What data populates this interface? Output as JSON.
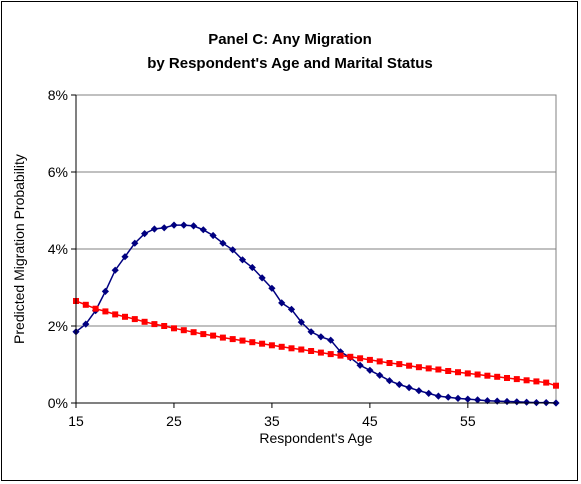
{
  "chart_data": {
    "type": "line",
    "title": "Panel C: Any Migration",
    "subtitle": "by Respondent's Age and Marital Status",
    "xlabel": "Respondent's Age",
    "ylabel": "Predicted Migration Probability",
    "xlim": [
      15,
      64
    ],
    "ylim": [
      0,
      0.08
    ],
    "x_ticks": [
      15,
      25,
      35,
      45,
      55
    ],
    "y_ticks": [
      {
        "value": 0,
        "label": "0%"
      },
      {
        "value": 0.02,
        "label": "2%"
      },
      {
        "value": 0.04,
        "label": "4%"
      },
      {
        "value": 0.06,
        "label": "6%"
      },
      {
        "value": 0.08,
        "label": "8%"
      }
    ],
    "grid": "horizontal",
    "legend": "none",
    "x": [
      15,
      16,
      17,
      18,
      19,
      20,
      21,
      22,
      23,
      24,
      25,
      26,
      27,
      28,
      29,
      30,
      31,
      32,
      33,
      34,
      35,
      36,
      37,
      38,
      39,
      40,
      41,
      42,
      43,
      44,
      45,
      46,
      47,
      48,
      49,
      50,
      51,
      52,
      53,
      54,
      55,
      56,
      57,
      58,
      59,
      60,
      61,
      62,
      63,
      64
    ],
    "series": [
      {
        "color": "#000080",
        "marker": "diamond",
        "values": [
          0.0185,
          0.0205,
          0.024,
          0.029,
          0.0345,
          0.038,
          0.0415,
          0.044,
          0.0452,
          0.0455,
          0.0462,
          0.0462,
          0.046,
          0.045,
          0.0435,
          0.0415,
          0.0398,
          0.0372,
          0.0352,
          0.0325,
          0.0298,
          0.026,
          0.0243,
          0.021,
          0.0185,
          0.0172,
          0.0163,
          0.0133,
          0.0118,
          0.0098,
          0.0085,
          0.0072,
          0.0058,
          0.0048,
          0.004,
          0.0032,
          0.0025,
          0.0018,
          0.0015,
          0.0012,
          0.001,
          0.0008,
          0.0006,
          0.0005,
          0.0004,
          0.0003,
          0.0002,
          0.0001,
          0.0001,
          0.0
        ]
      },
      {
        "color": "#ff0000",
        "marker": "square",
        "values": [
          0.0265,
          0.0255,
          0.0245,
          0.0238,
          0.023,
          0.0224,
          0.0218,
          0.0211,
          0.0205,
          0.02,
          0.0194,
          0.0189,
          0.0184,
          0.0179,
          0.0175,
          0.017,
          0.0166,
          0.0162,
          0.0158,
          0.0154,
          0.015,
          0.0146,
          0.0142,
          0.0139,
          0.0135,
          0.0131,
          0.0127,
          0.0123,
          0.012,
          0.0116,
          0.0112,
          0.0108,
          0.0104,
          0.0101,
          0.0097,
          0.0093,
          0.009,
          0.0087,
          0.0083,
          0.008,
          0.0077,
          0.0074,
          0.0071,
          0.0068,
          0.0065,
          0.0062,
          0.0059,
          0.0056,
          0.0053,
          0.0045
        ]
      }
    ]
  }
}
